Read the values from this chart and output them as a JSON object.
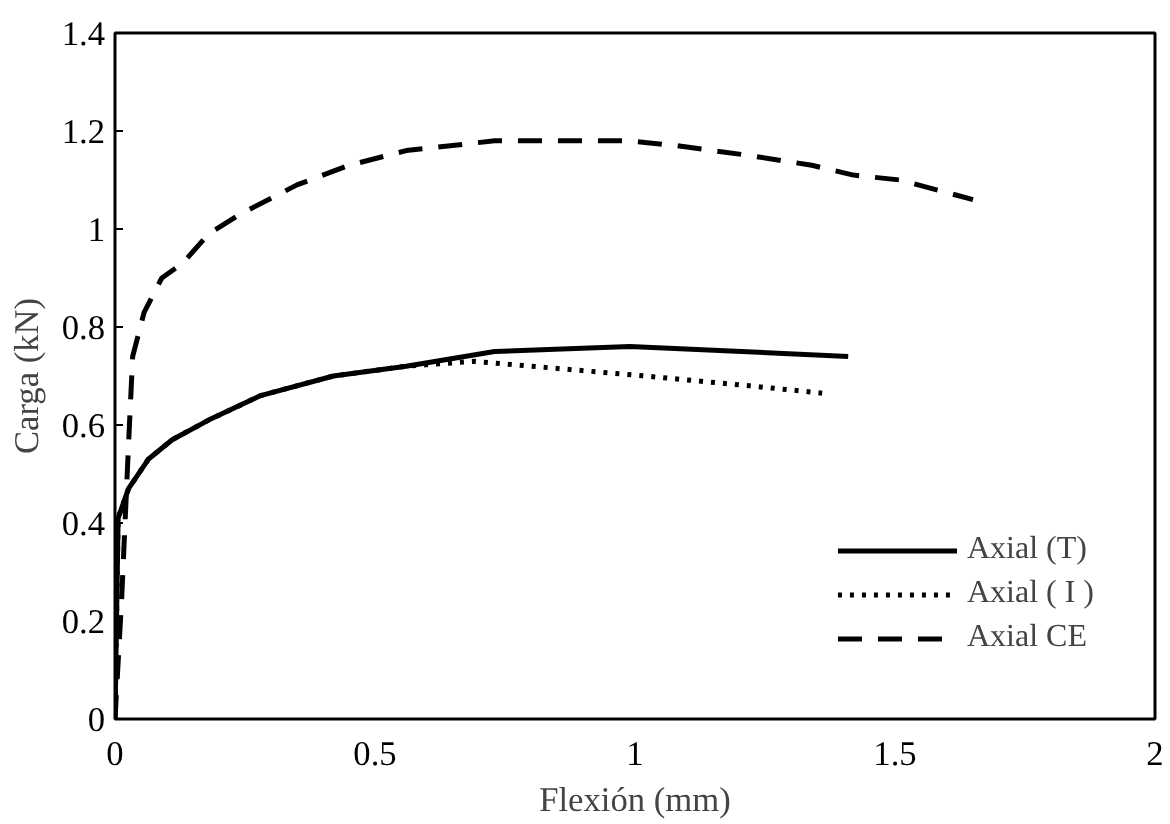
{
  "chart_data": {
    "type": "line",
    "xlabel": "Flexión (mm)",
    "ylabel": "Carga (kN)",
    "xlim": [
      0,
      2
    ],
    "xticks": [
      0,
      0.5,
      1,
      1.5,
      2
    ],
    "ylim": [
      0,
      1.4
    ],
    "yticks": [
      0,
      0.2,
      0.4,
      0.6,
      0.8,
      1,
      1.2,
      1.4
    ],
    "grid": false,
    "legend": "bottom right",
    "series": [
      {
        "name": "Axial (T)",
        "color": "#000000",
        "line_style": "solid",
        "x": [
          0,
          0.006,
          0.026,
          0.064,
          0.11,
          0.18,
          0.28,
          0.42,
          0.56,
          0.73,
          0.99,
          1.41
        ],
        "values": [
          0,
          0.41,
          0.47,
          0.53,
          0.57,
          0.61,
          0.66,
          0.7,
          0.72,
          0.75,
          0.76,
          0.74
        ]
      },
      {
        "name": "Axial ( I )",
        "color": "#000000",
        "line_style": "dotted",
        "x": [
          0,
          0.006,
          0.026,
          0.064,
          0.11,
          0.18,
          0.28,
          0.42,
          0.56,
          0.69,
          1.02,
          1.22,
          1.36
        ],
        "values": [
          0,
          0.41,
          0.47,
          0.53,
          0.57,
          0.61,
          0.66,
          0.7,
          0.72,
          0.73,
          0.7,
          0.68,
          0.665
        ]
      },
      {
        "name": "Axial CE",
        "color": "#000000",
        "line_style": "dashed",
        "x": [
          0,
          0.013,
          0.026,
          0.034,
          0.056,
          0.09,
          0.13,
          0.18,
          0.24,
          0.35,
          0.45,
          0.56,
          0.73,
          0.99,
          1.08,
          1.22,
          1.34,
          1.42,
          1.51,
          1.65
        ],
        "values": [
          0,
          0.25,
          0.56,
          0.74,
          0.83,
          0.9,
          0.93,
          0.99,
          1.03,
          1.09,
          1.13,
          1.16,
          1.18,
          1.18,
          1.17,
          1.15,
          1.13,
          1.11,
          1.1,
          1.06
        ]
      }
    ]
  }
}
